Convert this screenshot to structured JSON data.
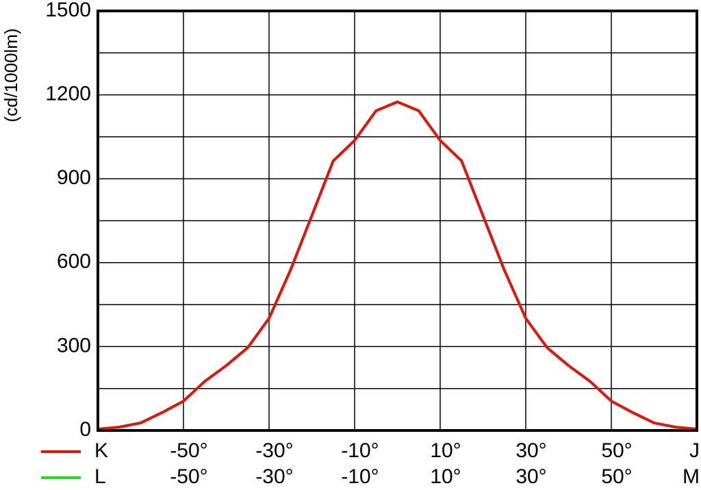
{
  "chart_data": {
    "type": "line",
    "y_label": "(cd/1000lm)",
    "x": [
      -70,
      -65,
      -60,
      -55,
      -50,
      -45,
      -40,
      -35,
      -30,
      -25,
      -20,
      -15,
      -10,
      -5,
      0,
      5,
      10,
      15,
      20,
      25,
      30,
      35,
      40,
      45,
      50,
      55,
      60,
      65,
      70
    ],
    "series": [
      {
        "name": "K",
        "color": "#e8120c",
        "end_label": "J",
        "values": [
          5,
          12,
          27,
          64,
          105,
          176,
          232,
          296,
          401,
          573,
          768,
          964,
          1037,
          1143,
          1175,
          1143,
          1037,
          964,
          768,
          573,
          401,
          296,
          232,
          176,
          105,
          64,
          27,
          12,
          5
        ]
      },
      {
        "name": "L",
        "color": "#22dd22",
        "end_label": "M",
        "values": [
          5,
          12,
          27,
          64,
          105,
          176,
          232,
          296,
          401,
          573,
          768,
          964,
          1037,
          1143,
          1175,
          1143,
          1037,
          964,
          768,
          573,
          401,
          296,
          232,
          176,
          105,
          64,
          27,
          12,
          5
        ]
      }
    ],
    "xlim": [
      -70,
      70
    ],
    "xticks": [
      {
        "value": -50,
        "label": "-50°"
      },
      {
        "value": -30,
        "label": "-30°"
      },
      {
        "value": -10,
        "label": "-10°"
      },
      {
        "value": 10,
        "label": "10°"
      },
      {
        "value": 30,
        "label": "30°"
      },
      {
        "value": 50,
        "label": "50°"
      }
    ],
    "ylim": [
      0,
      1500
    ],
    "yticks": [
      0,
      300,
      600,
      900,
      1200,
      1500
    ],
    "y_minor_ticks": [
      150,
      450,
      750,
      1050,
      1350
    ],
    "grid": true
  }
}
